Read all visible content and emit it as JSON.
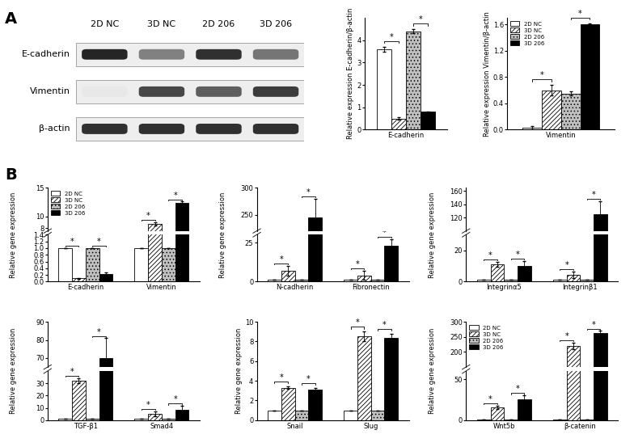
{
  "panel_labels": [
    "A",
    "B"
  ],
  "blot": {
    "lanes": [
      "2D NC",
      "3D NC",
      "2D 206",
      "3D 206"
    ],
    "rows": [
      {
        "label": "E-cadherin",
        "intensity": [
          0.95,
          0.55,
          0.9,
          0.6
        ]
      },
      {
        "label": "Vimentin",
        "intensity": [
          0.1,
          0.8,
          0.7,
          0.85
        ]
      },
      {
        "label": "β-actin",
        "intensity": [
          0.9,
          0.9,
          0.9,
          0.9
        ]
      }
    ]
  },
  "chart_data": [
    {
      "type": "bar",
      "y_label": "Relative expression E-cadherin/β-actin",
      "categories": [
        "E-cadherin"
      ],
      "series": [
        {
          "name": "2D NC",
          "color": "#ffffff",
          "values": [
            3.6
          ],
          "errors": [
            0.12
          ]
        },
        {
          "name": "3D NC",
          "color": "#ffffff",
          "values": [
            0.5
          ],
          "errors": [
            0.05
          ]
        },
        {
          "name": "2D 206",
          "color": "#bfbfbf",
          "values": [
            4.4
          ],
          "errors": [
            0.1
          ]
        },
        {
          "name": "3D 206",
          "color": "#000000",
          "values": [
            0.8
          ],
          "errors": [
            0.02
          ]
        }
      ],
      "ylim": [
        0,
        5
      ],
      "yticks": [
        0,
        1,
        2,
        3,
        4
      ],
      "annotations": [
        {
          "text": "*",
          "category": "E-cadherin",
          "series": [
            "2D NC",
            "3D NC"
          ]
        },
        {
          "text": "*",
          "category": "E-cadherin",
          "series": [
            "2D 206",
            "3D 206"
          ]
        }
      ]
    },
    {
      "type": "bar",
      "y_label": "Relative expression Vimentin/β-actin",
      "categories": [
        "Vimentin"
      ],
      "series": [
        {
          "name": "2D NC",
          "color": "#ffffff",
          "values": [
            0.03
          ],
          "errors": [
            0.02
          ]
        },
        {
          "name": "3D NC",
          "color": "#ffffff",
          "values": [
            0.6
          ],
          "errors": [
            0.08
          ]
        },
        {
          "name": "2D 206",
          "color": "#bfbfbf",
          "values": [
            0.55
          ],
          "errors": [
            0.03
          ]
        },
        {
          "name": "3D 206",
          "color": "#000000",
          "values": [
            1.6
          ],
          "errors": [
            0.02
          ]
        }
      ],
      "ylim": [
        0,
        1.7
      ],
      "yticks": [
        {
          "value": 0,
          "label": "0.0"
        },
        0.4,
        0.8,
        1.2,
        1.6
      ],
      "legend": "upper left",
      "annotations": [
        {
          "text": "*",
          "category": "Vimentin",
          "series": [
            "2D NC",
            "3D NC"
          ]
        },
        {
          "text": "*",
          "category": "Vimentin",
          "series": [
            "2D 206",
            "3D 206"
          ]
        }
      ]
    },
    {
      "type": "bar",
      "y_label": "Relative gene expression",
      "categories": [
        "E-cadherin",
        "Vimentin"
      ],
      "series": [
        {
          "name": "2D NC",
          "color": "#ffffff",
          "values": [
            1,
            1
          ],
          "errors": [
            0,
            0
          ]
        },
        {
          "name": "3D NC",
          "color": "#ffffff",
          "values": [
            0.1,
            8.7
          ],
          "errors": [
            0.01,
            0.3
          ]
        },
        {
          "name": "2D 206",
          "color": "#bfbfbf",
          "values": [
            1,
            1
          ],
          "errors": [
            0,
            0
          ]
        },
        {
          "name": "3D 206",
          "color": "#000000",
          "values": [
            0.22,
            12.3
          ],
          "errors": [
            0.05,
            0.3
          ]
        }
      ],
      "ylim": [
        [
          0,
          1.4
        ],
        [
          7.5,
          15
        ]
      ],
      "yticks": [
        [
          {
            "value": 0,
            "label": "0.0"
          },
          0.2,
          0.4,
          0.6,
          0.8,
          {
            "value": 1,
            "label": "1.0"
          },
          1.2,
          1.4
        ],
        [
          8,
          10,
          15
        ]
      ],
      "legend": "upper left",
      "annotations": [
        {
          "text": "*",
          "category": "E-cadherin",
          "series": [
            "2D NC",
            "3D NC"
          ]
        },
        {
          "text": "*",
          "category": "E-cadherin",
          "series": [
            "2D 206",
            "3D 206"
          ]
        },
        {
          "text": "*",
          "category": "Vimentin",
          "series": [
            "2D NC",
            "3D NC"
          ]
        },
        {
          "text": "*",
          "category": "Vimentin",
          "series": [
            "2D 206",
            "3D 206"
          ]
        }
      ]
    },
    {
      "type": "bar",
      "y_label": "Relative gene expression",
      "categories": [
        "N-cadherin",
        "Fibronectin"
      ],
      "series": [
        {
          "name": "2D NC",
          "color": "#ffffff",
          "values": [
            1,
            1
          ],
          "errors": [
            0,
            0
          ]
        },
        {
          "name": "3D NC",
          "color": "#ffffff",
          "values": [
            7,
            4
          ],
          "errors": [
            3,
            3
          ]
        },
        {
          "name": "2D 206",
          "color": "#bfbfbf",
          "values": [
            1,
            1
          ],
          "errors": [
            0,
            0
          ]
        },
        {
          "name": "3D 206",
          "color": "#000000",
          "values": [
            245,
            23
          ],
          "errors": [
            35,
            4
          ]
        }
      ],
      "ylim": [
        [
          0,
          30
        ],
        [
          220,
          300
        ]
      ],
      "yticks": [
        [
          0,
          25
        ],
        [
          250,
          300
        ]
      ],
      "annotations": [
        {
          "text": "*",
          "category": "N-cadherin",
          "series": [
            "2D NC",
            "3D NC"
          ]
        },
        {
          "text": "*",
          "category": "N-cadherin",
          "series": [
            "2D 206",
            "3D 206"
          ]
        },
        {
          "text": "*",
          "category": "Fibronectin",
          "series": [
            "2D NC",
            "3D NC"
          ]
        },
        {
          "text": "*",
          "category": "Fibronectin",
          "series": [
            "2D 206",
            "3D 206"
          ]
        }
      ]
    },
    {
      "type": "bar",
      "y_label": "Relative gene expression",
      "categories": [
        "Integrinα5",
        "Integrinβ1"
      ],
      "series": [
        {
          "name": "2D NC",
          "color": "#ffffff",
          "values": [
            1,
            1
          ],
          "errors": [
            0,
            0
          ]
        },
        {
          "name": "3D NC",
          "color": "#ffffff",
          "values": [
            11,
            4.5
          ],
          "errors": [
            1.5,
            2
          ]
        },
        {
          "name": "2D 206",
          "color": "#bfbfbf",
          "values": [
            1,
            1
          ],
          "errors": [
            0,
            0
          ]
        },
        {
          "name": "3D 206",
          "color": "#000000",
          "values": [
            10,
            125
          ],
          "errors": [
            3,
            20
          ]
        }
      ],
      "ylim": [
        [
          0,
          30
        ],
        [
          100,
          165
        ]
      ],
      "yticks": [
        [
          0,
          20
        ],
        [
          120,
          140,
          160
        ]
      ],
      "annotations": [
        {
          "text": "*",
          "category": "Integrinα5",
          "series": [
            "2D NC",
            "3D NC"
          ]
        },
        {
          "text": "*",
          "category": "Integrinα5",
          "series": [
            "2D 206",
            "3D 206"
          ]
        },
        {
          "text": "*",
          "category": "Integrinβ1",
          "series": [
            "2D NC",
            "3D NC"
          ]
        },
        {
          "text": "*",
          "category": "Integrinβ1",
          "series": [
            "2D 206",
            "3D 206"
          ]
        }
      ]
    },
    {
      "type": "bar",
      "y_label": "Relative gene expression",
      "categories": [
        "TGF-β1",
        "Smad4"
      ],
      "series": [
        {
          "name": "2D NC",
          "color": "#ffffff",
          "values": [
            1,
            1
          ],
          "errors": [
            0,
            0
          ]
        },
        {
          "name": "3D NC",
          "color": "#ffffff",
          "values": [
            32,
            5
          ],
          "errors": [
            2,
            2
          ]
        },
        {
          "name": "2D 206",
          "color": "#bfbfbf",
          "values": [
            1,
            1
          ],
          "errors": [
            0,
            0
          ]
        },
        {
          "name": "3D 206",
          "color": "#000000",
          "values": [
            70,
            8.5
          ],
          "errors": [
            11,
            3
          ]
        }
      ],
      "ylim": [
        [
          0,
          40
        ],
        [
          65,
          90
        ]
      ],
      "yticks": [
        [
          0,
          10,
          20,
          30
        ],
        [
          70,
          80,
          90
        ]
      ],
      "annotations": [
        {
          "text": "*",
          "category": "TGF-β1",
          "series": [
            "2D NC",
            "3D NC"
          ]
        },
        {
          "text": "*",
          "category": "TGF-β1",
          "series": [
            "2D 206",
            "3D 206"
          ]
        },
        {
          "text": "*",
          "category": "Smad4",
          "series": [
            "2D NC",
            "3D NC"
          ]
        },
        {
          "text": "*",
          "category": "Smad4",
          "series": [
            "2D 206",
            "3D 206"
          ]
        }
      ]
    },
    {
      "type": "bar",
      "y_label": "Relative gene expression",
      "categories": [
        "Snail",
        "Slug"
      ],
      "series": [
        {
          "name": "2D NC",
          "color": "#ffffff",
          "values": [
            1,
            1
          ],
          "errors": [
            0,
            0
          ]
        },
        {
          "name": "3D NC",
          "color": "#ffffff",
          "values": [
            3.3,
            8.5
          ],
          "errors": [
            0.15,
            0.5
          ]
        },
        {
          "name": "2D 206",
          "color": "#bfbfbf",
          "values": [
            1,
            1
          ],
          "errors": [
            0,
            0
          ]
        },
        {
          "name": "3D 206",
          "color": "#000000",
          "values": [
            3.1,
            8.4
          ],
          "errors": [
            0.2,
            0.4
          ]
        }
      ],
      "ylim": [
        0,
        10
      ],
      "yticks": [
        0,
        2,
        4,
        6,
        8,
        10
      ],
      "annotations": [
        {
          "text": "*",
          "category": "Snail",
          "series": [
            "2D NC",
            "3D NC"
          ]
        },
        {
          "text": "*",
          "category": "Snail",
          "series": [
            "2D 206",
            "3D 206"
          ]
        },
        {
          "text": "*",
          "category": "Slug",
          "series": [
            "2D NC",
            "3D NC"
          ]
        },
        {
          "text": "*",
          "category": "Slug",
          "series": [
            "2D 206",
            "3D 206"
          ]
        }
      ]
    },
    {
      "type": "bar",
      "y_label": "Relative gene expression",
      "categories": [
        "Wnt5b",
        "β-catenin"
      ],
      "series": [
        {
          "name": "2D NC",
          "color": "#ffffff",
          "values": [
            1,
            1
          ],
          "errors": [
            0,
            0
          ]
        },
        {
          "name": "3D NC",
          "color": "#ffffff",
          "values": [
            16,
            220
          ],
          "errors": [
            2,
            12
          ]
        },
        {
          "name": "2D 206",
          "color": "#bfbfbf",
          "values": [
            1,
            1
          ],
          "errors": [
            0,
            0
          ]
        },
        {
          "name": "3D 206",
          "color": "#000000",
          "values": [
            25,
            262
          ],
          "errors": [
            5,
            8
          ]
        }
      ],
      "ylim": [
        [
          0,
          60
        ],
        [
          150,
          300
        ]
      ],
      "yticks": [
        [
          0,
          50
        ],
        [
          200,
          250,
          300
        ]
      ],
      "legend": "upper left",
      "annotations": [
        {
          "text": "*",
          "category": "Wnt5b",
          "series": [
            "2D NC",
            "3D NC"
          ]
        },
        {
          "text": "*",
          "category": "Wnt5b",
          "series": [
            "2D 206",
            "3D 206"
          ]
        },
        {
          "text": "*",
          "category": "β-catenin",
          "series": [
            "2D NC",
            "3D NC"
          ]
        },
        {
          "text": "*",
          "category": "β-catenin",
          "series": [
            "2D 206",
            "3D 206"
          ]
        }
      ]
    }
  ]
}
